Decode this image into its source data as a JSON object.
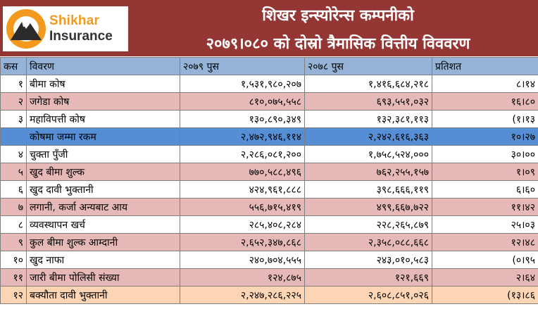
{
  "header": {
    "logo_text_1": "Shikhar",
    "logo_text_2": "Insurance",
    "title_line_1": "शिखर इन्स्योरेन्स कम्पनीको",
    "title_line_2": "२०७९।०८० को दोस्रो त्रैमासिक वित्तीय विववरण",
    "bg_color": "#943634",
    "logo_color": "#f39a1e"
  },
  "table": {
    "columns": [
      "कस",
      "विवरण",
      "२०७९ पुस",
      "२०७८ पुस",
      "प्रतिशत"
    ],
    "rows": [
      {
        "sn": "१",
        "label": "बीमा कोष",
        "cur": "१,५३१,९८०,२०७",
        "prev": "१,४१६,६८४,२१८",
        "pct": "८।१४",
        "style": "white"
      },
      {
        "sn": "२",
        "label": "जगेडा कोष",
        "cur": "८१०,०७५,५५८",
        "prev": "६९३,५५१,०३२",
        "pct": "१६।८०",
        "style": "pink"
      },
      {
        "sn": "३",
        "label": "महाविपत्ती कोष",
        "cur": "१३०,८९०,३४९",
        "prev": "१३२,३८१,११३",
        "pct": "(१।१३",
        "style": "white"
      },
      {
        "sn": "",
        "label": "कोषमा जम्मा रकम",
        "cur": "२,४७२,९४६,११४",
        "prev": "२,२४२,६१६,३६३",
        "pct": "१०।२७",
        "style": "blue"
      },
      {
        "sn": "४",
        "label": "चुक्ता पुँजी",
        "cur": "२,२८६,०८१,२००",
        "prev": "१,७५८,५२४,०००",
        "pct": "३०।००",
        "style": "white"
      },
      {
        "sn": "५",
        "label": "खुद बीमा शुल्क",
        "cur": "७७०,५८८,४९६",
        "prev": "७६२,२५५,१५७",
        "pct": "१।०९",
        "style": "pink"
      },
      {
        "sn": "६",
        "label": "खुद दावी भुक्तानी",
        "cur": "४२४,९६१,८८८",
        "prev": "३९८,६६६,११९",
        "pct": "६।६०",
        "style": "white"
      },
      {
        "sn": "७",
        "label": "लगानी, कर्जा अन्यबाट आय",
        "cur": "५५६,७१५,४१९",
        "prev": "४९९,६६७,७२२",
        "pct": "११।४२",
        "style": "pink"
      },
      {
        "sn": "८",
        "label": "व्यवस्थापन खर्च",
        "cur": "२८५,४०८,२८४",
        "prev": "२२८,२६५,८७९",
        "pct": "२५।०३",
        "style": "white"
      },
      {
        "sn": "९",
        "label": "कुल बीमा शुल्क आम्दानी",
        "cur": "२,६५२,३४७,८६८",
        "prev": "२,३५८,०८८,६६८",
        "pct": "१२।४८",
        "style": "pink"
      },
      {
        "sn": "१०",
        "label": "खुद नाफा",
        "cur": "२४०,७०४,५५५",
        "prev": "२४३,०१०,५८३",
        "pct": "(०।९५",
        "style": "white"
      },
      {
        "sn": "११",
        "label": "जारी बीमा पोलिसी संख्या",
        "cur": "१२४,८७५",
        "prev": "१२१,६६९",
        "pct": "२।६४",
        "style": "pink"
      },
      {
        "sn": "१२",
        "label": "बक्यौता दावी भुक्तानी",
        "cur": "२,२४७,२८६,२२५",
        "prev": "२,६०८,८५१,०२६",
        "pct": "(१३।८६",
        "style": "peach"
      }
    ]
  }
}
